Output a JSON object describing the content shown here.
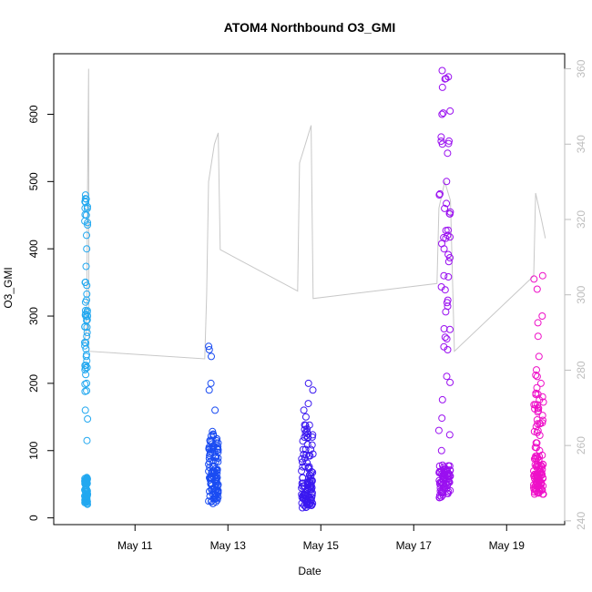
{
  "chart_data": {
    "type": "scatter",
    "title": "ATOM4 Northbound O3_GMI",
    "xlabel": "Date",
    "ylabel": "O3_GMI",
    "xlim": [
      "2018-05-09T06:00",
      "2018-05-20T06:00"
    ],
    "ylim": [
      -10,
      690
    ],
    "y2lim": [
      239,
      364
    ],
    "x_ticks": [
      {
        "date": "2018-05-11",
        "label": "May 11"
      },
      {
        "date": "2018-05-13",
        "label": "May 13"
      },
      {
        "date": "2018-05-15",
        "label": "May 15"
      },
      {
        "date": "2018-05-17",
        "label": "May 17"
      },
      {
        "date": "2018-05-19",
        "label": "May 19"
      }
    ],
    "y_ticks": [
      "0",
      "100",
      "200",
      "300",
      "400",
      "500",
      "600"
    ],
    "y2_ticks": [
      "240",
      "260",
      "280",
      "300",
      "320",
      "340",
      "360"
    ],
    "grid": false,
    "legend": "none",
    "colors": {
      "line": "#c8c8c8",
      "flight1": "#22a8f0",
      "flight2": "#1a4cf2",
      "flight3": "#3a18f0",
      "flight4": "#9a10f0",
      "flight5": "#ee10c8",
      "axis": "#000000",
      "axis_right": "#bdbdbd"
    },
    "series": [
      {
        "color_key": "flight1",
        "x": [
          "2018-05-09T22:00",
          "2018-05-09T23:30"
        ],
        "y_bands": [
          [
            20,
            60
          ],
          [
            180,
            480
          ]
        ],
        "outliers": [
          115,
          188,
          147,
          160,
          200,
          220,
          240,
          260,
          270,
          300,
          350,
          400,
          420,
          450,
          470,
          480
        ]
      },
      {
        "color_key": "flight2",
        "x": [
          "2018-05-12T14:00",
          "2018-05-12T19:00"
        ],
        "y_bands": [
          [
            20,
            80
          ],
          [
            80,
            130
          ]
        ],
        "outliers": [
          90,
          110,
          160,
          190,
          200,
          240,
          250,
          255
        ]
      },
      {
        "color_key": "flight3",
        "x": [
          "2018-05-14T14:00",
          "2018-05-14T20:00"
        ],
        "y_bands": [
          [
            15,
            60
          ],
          [
            60,
            140
          ]
        ],
        "outliers": [
          150,
          160,
          170,
          190,
          200
        ]
      },
      {
        "color_key": "flight4",
        "x": [
          "2018-05-17T13:00",
          "2018-05-17T19:00"
        ],
        "y_bands": [
          [
            30,
            80
          ],
          [
            80,
            660
          ]
        ],
        "outliers": [
          100,
          130,
          250,
          280,
          320,
          360,
          400,
          420,
          460,
          500,
          560,
          600,
          640,
          665
        ]
      },
      {
        "color_key": "flight5",
        "x": [
          "2018-05-19T14:00",
          "2018-05-19T19:00"
        ],
        "y_bands": [
          [
            35,
            80
          ],
          [
            80,
            220
          ]
        ],
        "outliers": [
          60,
          100,
          140,
          180,
          200,
          220,
          240,
          270,
          290,
          300,
          340,
          355,
          360
        ]
      }
    ],
    "line_series": {
      "axis": "right",
      "points": [
        [
          "2018-05-09T22:00",
          287
        ],
        [
          "2018-05-09T23:00",
          292
        ],
        [
          "2018-05-09T23:30",
          330
        ],
        [
          "2018-05-10T00:00",
          360
        ],
        [
          "2018-05-10T00:10",
          285
        ],
        [
          "2018-05-12T12:00",
          283
        ],
        [
          "2018-05-12T13:00",
          300
        ],
        [
          "2018-05-12T14:00",
          330
        ],
        [
          "2018-05-12T17:00",
          340
        ],
        [
          "2018-05-12T19:00",
          343
        ],
        [
          "2018-05-12T20:00",
          312
        ],
        [
          "2018-05-14T12:00",
          301
        ],
        [
          "2018-05-14T13:00",
          335
        ],
        [
          "2018-05-14T16:00",
          340
        ],
        [
          "2018-05-14T19:00",
          345
        ],
        [
          "2018-05-14T20:00",
          299
        ],
        [
          "2018-05-17T12:00",
          303
        ],
        [
          "2018-05-17T13:00",
          323
        ],
        [
          "2018-05-17T16:00",
          330
        ],
        [
          "2018-05-17T19:00",
          325
        ],
        [
          "2018-05-17T21:00",
          285
        ],
        [
          "2018-05-19T14:00",
          305
        ],
        [
          "2018-05-19T15:00",
          327
        ],
        [
          "2018-05-19T18:00",
          320
        ],
        [
          "2018-05-19T20:00",
          315
        ]
      ]
    }
  }
}
